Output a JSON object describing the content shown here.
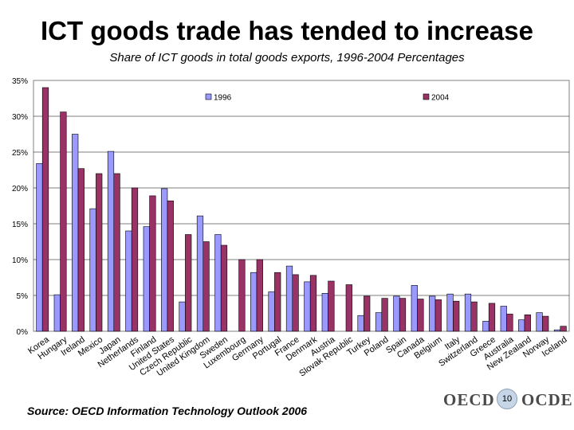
{
  "slide": {
    "title": "ICT goods trade has tended to increase",
    "subtitle": "Share of ICT goods in total goods exports, 1996-2004 Percentages",
    "source": "Source: OECD Information Technology Outlook 2006",
    "logo_left": "OECD",
    "logo_right": "OCDE",
    "page_number": "10"
  },
  "colors": {
    "series_1996": "#9999ff",
    "series_2004": "#993366",
    "plot_border": "#808080",
    "gridline": "#000000"
  },
  "chart_data": {
    "type": "bar",
    "title": "Share of ICT goods in total goods exports, 1996-2004 Percentages",
    "xlabel": "",
    "ylabel": "",
    "ylim": [
      0,
      35
    ],
    "yticks": [
      0,
      5,
      10,
      15,
      20,
      25,
      30,
      35
    ],
    "ytick_labels": [
      "0%",
      "5%",
      "10%",
      "15%",
      "20%",
      "25%",
      "30%",
      "35%"
    ],
    "grid": true,
    "legend": "top, inside plot",
    "categories": [
      "Korea",
      "Hungary",
      "Ireland",
      "Mexico",
      "Japan",
      "Netherlands",
      "Finland",
      "United States",
      "Czech Republic",
      "United Kingdom",
      "Sweden",
      "Luxembourg",
      "Germany",
      "Portugal",
      "France",
      "Denmark",
      "Austria",
      "Slovak Republic",
      "Turkey",
      "Poland",
      "Spain",
      "Canada",
      "Belgium",
      "Italy",
      "Switzerland",
      "Greece",
      "Australia",
      "New Zealand",
      "Norway",
      "Iceland"
    ],
    "series": [
      {
        "name": "1996",
        "values": [
          23.4,
          5.1,
          27.5,
          17.1,
          25.1,
          14.0,
          14.6,
          19.9,
          4.1,
          16.1,
          13.5,
          null,
          8.2,
          5.5,
          9.1,
          6.9,
          5.3,
          null,
          2.2,
          2.6,
          4.9,
          6.4,
          4.9,
          5.2,
          5.2,
          1.4,
          3.5,
          1.6,
          2.6,
          0.2
        ]
      },
      {
        "name": "2004",
        "values": [
          34.0,
          30.6,
          22.7,
          22.0,
          22.0,
          20.0,
          18.9,
          18.2,
          13.5,
          12.5,
          12.0,
          10.0,
          10.0,
          8.2,
          7.9,
          7.8,
          7.0,
          6.5,
          4.9,
          4.6,
          4.6,
          4.5,
          4.4,
          4.2,
          4.1,
          3.9,
          2.4,
          2.3,
          2.1,
          0.7
        ]
      }
    ]
  }
}
